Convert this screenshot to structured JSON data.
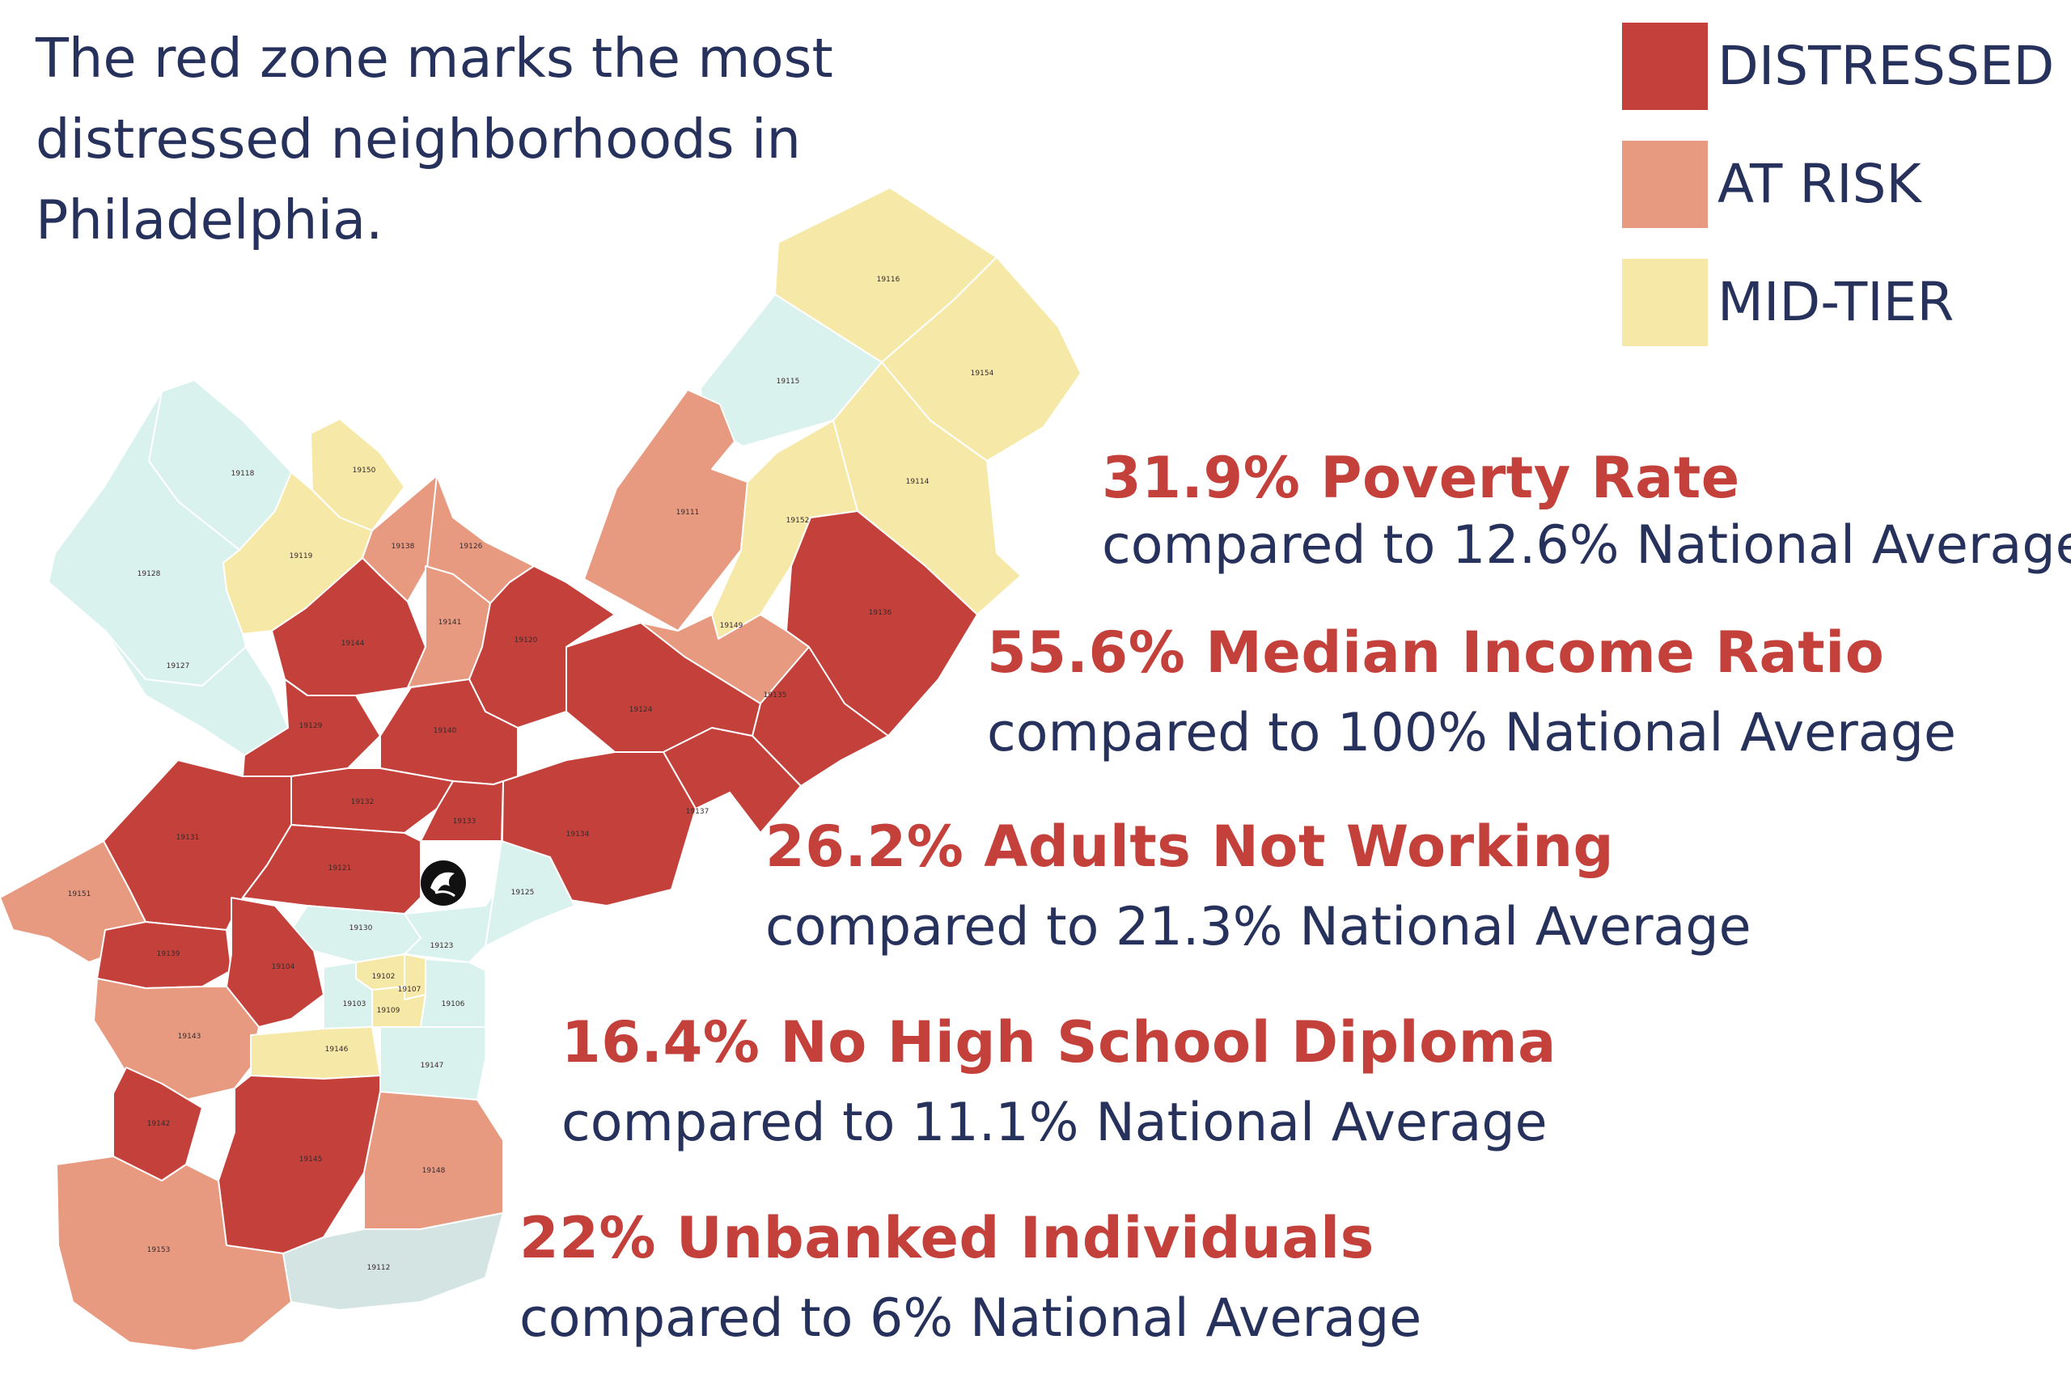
{
  "headline": "The red zone marks the most distressed neighborhoods in Philadelphia.",
  "legend": [
    {
      "label": "DISTRESSED",
      "color": "#c4403a"
    },
    {
      "label": "AT RISK",
      "color": "#e89a80"
    },
    {
      "label": "MID-TIER",
      "color": "#f6e8a6"
    }
  ],
  "colors": {
    "distressed": "#c4403a",
    "at_risk": "#e89a80",
    "mid_tier": "#f6e8a6",
    "other": "#d9f2ee",
    "other_grey": "#d3e4e2"
  },
  "stats": [
    {
      "headline": "31.9% Poverty Rate",
      "compare": "compared to 12.6% National Average"
    },
    {
      "headline": "55.6% Median Income Ratio",
      "compare": "compared to 100% National Average"
    },
    {
      "headline": "26.2% Adults Not Working",
      "compare": "compared to 21.3% National Average"
    },
    {
      "headline": "16.4% No High School Diploma",
      "compare": "compared to 11.1% National Average"
    },
    {
      "headline": "22% Unbanked Individuals",
      "compare": "compared to 6% National Average"
    }
  ],
  "map": {
    "marker_icon": "organization-logo-marker-icon",
    "zip_codes": [
      {
        "zip": "19116",
        "tier": "mid_tier"
      },
      {
        "zip": "19115",
        "tier": "other"
      },
      {
        "zip": "19154",
        "tier": "mid_tier"
      },
      {
        "zip": "19114",
        "tier": "mid_tier"
      },
      {
        "zip": "19111",
        "tier": "at_risk"
      },
      {
        "zip": "19152",
        "tier": "mid_tier"
      },
      {
        "zip": "19136",
        "tier": "distressed"
      },
      {
        "zip": "19149",
        "tier": "at_risk"
      },
      {
        "zip": "19135",
        "tier": "distressed"
      },
      {
        "zip": "19124",
        "tier": "distressed"
      },
      {
        "zip": "19137",
        "tier": "distressed"
      },
      {
        "zip": "19134",
        "tier": "distressed"
      },
      {
        "zip": "19118",
        "tier": "other"
      },
      {
        "zip": "19150",
        "tier": "mid_tier"
      },
      {
        "zip": "19128",
        "tier": "other"
      },
      {
        "zip": "19119",
        "tier": "mid_tier"
      },
      {
        "zip": "19138",
        "tier": "at_risk"
      },
      {
        "zip": "19126",
        "tier": "at_risk"
      },
      {
        "zip": "19127",
        "tier": "other"
      },
      {
        "zip": "19144",
        "tier": "distressed"
      },
      {
        "zip": "19141",
        "tier": "at_risk"
      },
      {
        "zip": "19120",
        "tier": "distressed"
      },
      {
        "zip": "19129",
        "tier": "distressed"
      },
      {
        "zip": "19140",
        "tier": "distressed"
      },
      {
        "zip": "19132",
        "tier": "distressed"
      },
      {
        "zip": "19133",
        "tier": "distressed"
      },
      {
        "zip": "19131",
        "tier": "distressed"
      },
      {
        "zip": "19121",
        "tier": "distressed"
      },
      {
        "zip": "19125",
        "tier": "other"
      },
      {
        "zip": "19151",
        "tier": "at_risk"
      },
      {
        "zip": "19130",
        "tier": "other"
      },
      {
        "zip": "19123",
        "tier": "other"
      },
      {
        "zip": "19139",
        "tier": "distressed"
      },
      {
        "zip": "19104",
        "tier": "distressed"
      },
      {
        "zip": "19102",
        "tier": "mid_tier"
      },
      {
        "zip": "19107",
        "tier": "mid_tier"
      },
      {
        "zip": "19103",
        "tier": "other"
      },
      {
        "zip": "19109",
        "tier": "mid_tier"
      },
      {
        "zip": "19106",
        "tier": "other"
      },
      {
        "zip": "19143",
        "tier": "at_risk"
      },
      {
        "zip": "19146",
        "tier": "mid_tier"
      },
      {
        "zip": "19147",
        "tier": "other"
      },
      {
        "zip": "19142",
        "tier": "distressed"
      },
      {
        "zip": "19145",
        "tier": "distressed"
      },
      {
        "zip": "19148",
        "tier": "at_risk"
      },
      {
        "zip": "19153",
        "tier": "at_risk"
      },
      {
        "zip": "19112",
        "tier": "other_grey"
      }
    ]
  }
}
